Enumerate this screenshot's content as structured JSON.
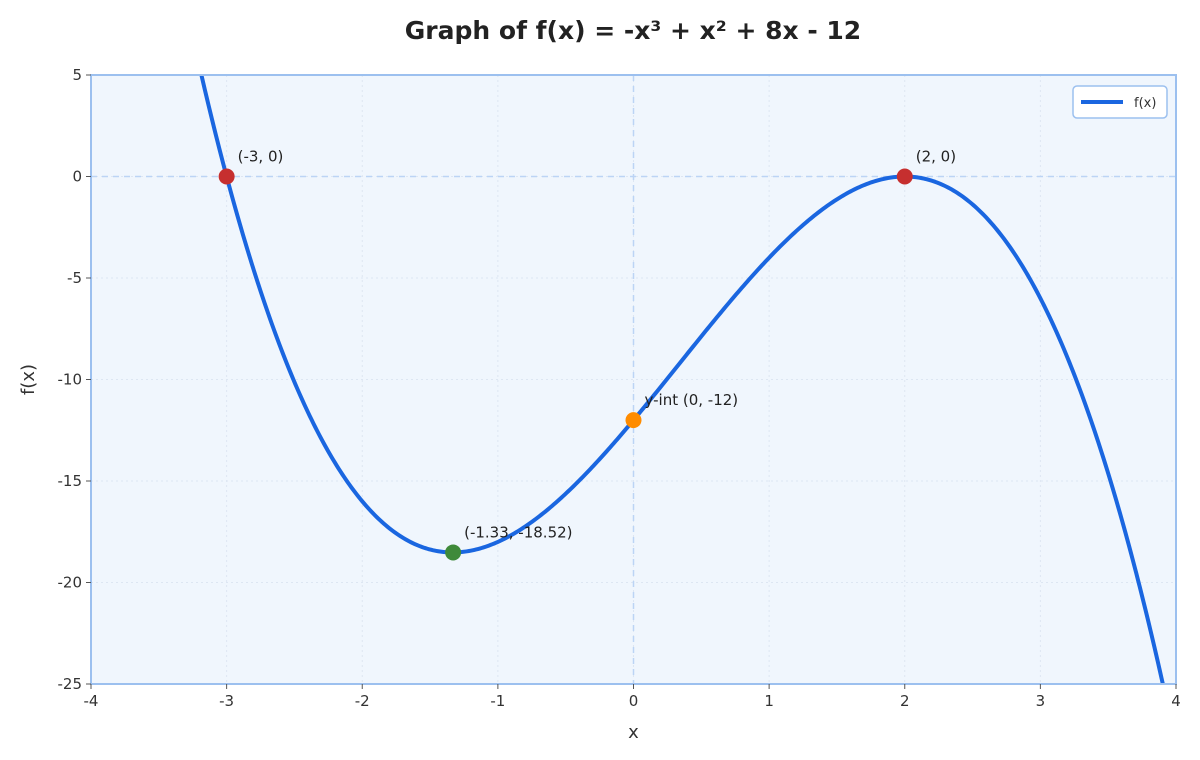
{
  "chart_data": {
    "type": "line",
    "title": "Graph of f(x) = -x³ + x² + 8x - 12",
    "xlabel": "x",
    "ylabel": "f(x)",
    "xlim": [
      -4,
      4
    ],
    "ylim": [
      -25,
      5
    ],
    "x_ticks": [
      -4,
      -3,
      -2,
      -1,
      0,
      1,
      2,
      3,
      4
    ],
    "y_ticks": [
      5,
      0,
      -5,
      -10,
      -15,
      -20,
      -25
    ],
    "grid": true,
    "legend_position": "top-right",
    "series": [
      {
        "name": "f(x)",
        "function": "-x^3 + x^2 + 8x - 12",
        "coefficients": [
          -1,
          1,
          8,
          -12
        ],
        "x_range": [
          -4,
          4
        ],
        "color": "#1a66e0"
      }
    ],
    "points": [
      {
        "x": -3,
        "y": 0,
        "label": "(-3, 0)",
        "color": "#c62f2f"
      },
      {
        "x": 2,
        "y": 0,
        "label": "(2, 0)",
        "color": "#c62f2f"
      },
      {
        "x": -1.33,
        "y": -18.52,
        "label": "(-1.33, -18.52)",
        "color": "#3f8a3a"
      },
      {
        "x": 0,
        "y": -12,
        "label": "y-int (0, -12)",
        "color": "#ff8c00"
      }
    ],
    "colors": {
      "plot_background": "#f0f6fd",
      "frame": "#9cc0ef",
      "grid": "#dde6f2",
      "reference_lines": "#bcd4f5"
    }
  }
}
